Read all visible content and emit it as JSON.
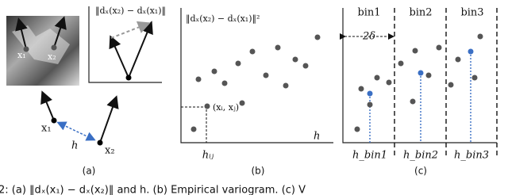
{
  "panel_a": {
    "point_1": "x₁",
    "point_2": "x₂",
    "inset_label": "‖dₓ(x₂) − dₓ(x₁)‖",
    "distance": "h",
    "caption": "(a)"
  },
  "panel_b": {
    "y_label": "‖dₓ(x₂) − dₓ(x₁)‖²",
    "point_label": "(xᵢ, xⱼ)",
    "x_label": "h",
    "tick_label": "hᵢⱼ",
    "caption": "(b)"
  },
  "panel_c": {
    "bins": [
      "bin1",
      "bin2",
      "bin3"
    ],
    "width_label": "2δ",
    "bin_centers": [
      "h_bin1",
      "h_bin2",
      "h_bin3"
    ],
    "caption": "(c)"
  },
  "figure_caption": "2: (a) ‖dₓ(x₁) − dₓ(x₂)‖ and h. (b) Empirical variogram. (c) V"
}
